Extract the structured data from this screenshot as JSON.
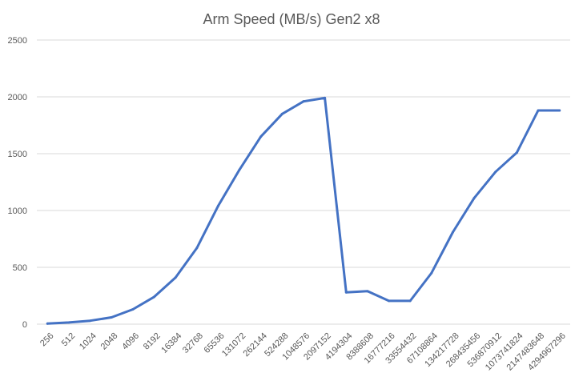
{
  "chart_data": {
    "type": "line",
    "title": "Arm Speed (MB/s) Gen2 x8",
    "xlabel": "",
    "ylabel": "",
    "ylim": [
      0,
      2500
    ],
    "yticks": [
      0,
      500,
      1000,
      1500,
      2000,
      2500
    ],
    "grid": true,
    "legend": "none",
    "categories": [
      "256",
      "512",
      "1024",
      "2048",
      "4096",
      "8192",
      "16384",
      "32768",
      "65536",
      "131072",
      "262144",
      "524288",
      "1048576",
      "2097152",
      "4194304",
      "8388608",
      "16777216",
      "33554432",
      "67108864",
      "134217728",
      "268435456",
      "536870912",
      "1073741824",
      "2147483648",
      "4294967296"
    ],
    "series": [
      {
        "color": "#4472c4",
        "values": [
          5,
          15,
          30,
          60,
          130,
          240,
          410,
          670,
          1040,
          1360,
          1650,
          1850,
          1960,
          1990,
          280,
          290,
          205,
          205,
          450,
          810,
          1110,
          1340,
          1510,
          1880,
          1880
        ]
      }
    ]
  }
}
